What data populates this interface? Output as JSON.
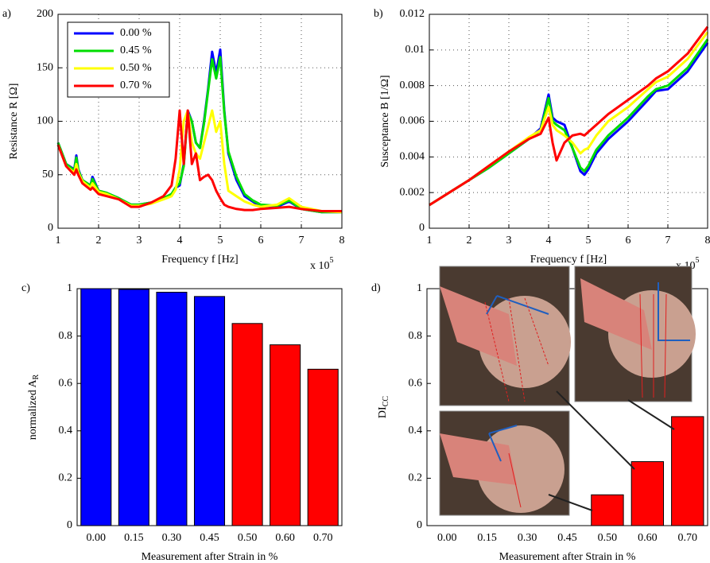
{
  "chart_data": [
    {
      "type": "line",
      "panel_label": "a)",
      "xlabel": "Frequency f [Hz]",
      "ylabel": "Resistance R [Ω]",
      "x_multiplier": "x 10",
      "x_multiplier_exp": "5",
      "grid": true,
      "legend": "upper left",
      "xlim": [
        1,
        8
      ],
      "xticks": [
        1,
        2,
        3,
        4,
        5,
        6,
        7,
        8
      ],
      "ylim": [
        0,
        200
      ],
      "yticks": [
        0,
        50,
        100,
        150,
        200
      ],
      "x": [
        1.0,
        1.2,
        1.4,
        1.45,
        1.5,
        1.6,
        1.8,
        1.85,
        2.0,
        2.2,
        2.5,
        2.8,
        3.0,
        3.3,
        3.6,
        3.8,
        3.9,
        4.0,
        4.1,
        4.2,
        4.3,
        4.4,
        4.5,
        4.6,
        4.7,
        4.8,
        4.9,
        5.0,
        5.1,
        5.2,
        5.4,
        5.6,
        5.8,
        6.0,
        6.4,
        6.7,
        7.0,
        7.5,
        8.0
      ],
      "series": [
        {
          "name": "0.00 %",
          "color": "#0000ff",
          "values": [
            80,
            60,
            55,
            68,
            55,
            45,
            40,
            48,
            35,
            33,
            28,
            22,
            22,
            24,
            28,
            32,
            38,
            40,
            60,
            110,
            100,
            80,
            75,
            100,
            130,
            165,
            145,
            167,
            110,
            70,
            45,
            30,
            25,
            20,
            20,
            25,
            18,
            15,
            15
          ]
        },
        {
          "name": "0.45 %",
          "color": "#00dd00",
          "values": [
            80,
            60,
            54,
            66,
            54,
            45,
            40,
            46,
            35,
            33,
            28,
            22,
            22,
            24,
            28,
            32,
            38,
            42,
            58,
            108,
            100,
            80,
            75,
            98,
            128,
            158,
            140,
            160,
            108,
            72,
            48,
            32,
            26,
            22,
            21,
            26,
            18,
            15,
            15
          ]
        },
        {
          "name": "0.50 %",
          "color": "#ffff00",
          "values": [
            78,
            58,
            52,
            60,
            52,
            44,
            38,
            42,
            34,
            32,
            27,
            21,
            21,
            23,
            27,
            30,
            36,
            55,
            100,
            110,
            80,
            70,
            65,
            80,
            95,
            110,
            90,
            100,
            60,
            35,
            30,
            25,
            22,
            20,
            22,
            28,
            20,
            16,
            15
          ]
        },
        {
          "name": "0.70 %",
          "color": "#ff0000",
          "values": [
            78,
            58,
            50,
            55,
            50,
            42,
            36,
            38,
            32,
            30,
            27,
            20,
            20,
            24,
            30,
            40,
            65,
            110,
            60,
            110,
            60,
            70,
            45,
            48,
            50,
            45,
            35,
            28,
            22,
            20,
            18,
            17,
            17,
            18,
            19,
            20,
            18,
            16,
            16
          ]
        }
      ]
    },
    {
      "type": "line",
      "panel_label": "b)",
      "xlabel": "Frequency f [Hz]",
      "ylabel": "Susceptance B [1/Ω]",
      "x_multiplier": "x 10",
      "x_multiplier_exp": "5",
      "grid": true,
      "xlim": [
        1,
        8
      ],
      "xticks": [
        1,
        2,
        3,
        4,
        5,
        6,
        7,
        8
      ],
      "ylim": [
        0,
        0.012
      ],
      "yticks": [
        0,
        0.002,
        0.004,
        0.006,
        0.008,
        0.01,
        0.012
      ],
      "x": [
        1,
        1.5,
        2,
        2.5,
        3,
        3.5,
        3.8,
        4,
        4.1,
        4.2,
        4.4,
        4.6,
        4.8,
        4.9,
        5,
        5.2,
        5.5,
        6,
        6.5,
        6.7,
        7,
        7.5,
        8
      ],
      "series": [
        {
          "name": "0.00 %",
          "color": "#0000ff",
          "values": [
            0.0013,
            0.002,
            0.0027,
            0.0034,
            0.0042,
            0.005,
            0.0056,
            0.0075,
            0.0062,
            0.006,
            0.0058,
            0.0045,
            0.0032,
            0.003,
            0.0033,
            0.0042,
            0.005,
            0.006,
            0.0072,
            0.0077,
            0.0078,
            0.0088,
            0.0104
          ]
        },
        {
          "name": "0.45 %",
          "color": "#00dd00",
          "values": [
            0.0013,
            0.002,
            0.0027,
            0.0034,
            0.0042,
            0.005,
            0.0055,
            0.0073,
            0.006,
            0.0058,
            0.0055,
            0.0045,
            0.0034,
            0.0032,
            0.0035,
            0.0044,
            0.0052,
            0.0062,
            0.0074,
            0.0078,
            0.008,
            0.009,
            0.0106
          ]
        },
        {
          "name": "0.50 %",
          "color": "#ffff00",
          "values": [
            0.0013,
            0.002,
            0.0027,
            0.0035,
            0.0043,
            0.0051,
            0.0055,
            0.0068,
            0.0058,
            0.0055,
            0.0052,
            0.0048,
            0.0042,
            0.0044,
            0.0045,
            0.0052,
            0.006,
            0.0068,
            0.0078,
            0.0082,
            0.0085,
            0.0095,
            0.011
          ]
        },
        {
          "name": "0.70 %",
          "color": "#ff0000",
          "values": [
            0.0013,
            0.002,
            0.0027,
            0.0035,
            0.0043,
            0.005,
            0.0053,
            0.0062,
            0.0048,
            0.0038,
            0.0048,
            0.0052,
            0.0053,
            0.0052,
            0.0054,
            0.0058,
            0.0064,
            0.0072,
            0.008,
            0.0084,
            0.0088,
            0.0098,
            0.0113
          ]
        }
      ]
    },
    {
      "type": "bar",
      "panel_label": "c)",
      "xlabel": "Measurement after Strain in %",
      "ylabel": "normalized A",
      "ylabel_sub": "R",
      "ylim": [
        0,
        1
      ],
      "yticks": [
        0,
        0.2,
        0.4,
        0.6,
        0.8,
        1
      ],
      "categories": [
        "0.00",
        "0.15",
        "0.30",
        "0.45",
        "0.50",
        "0.60",
        "0.70"
      ],
      "values": [
        1,
        0.997,
        0.985,
        0.967,
        0.853,
        0.763,
        0.66
      ],
      "colors": [
        "#0000ff",
        "#0000ff",
        "#0000ff",
        "#0000ff",
        "#ff0000",
        "#ff0000",
        "#ff0000"
      ]
    },
    {
      "type": "bar",
      "panel_label": "d)",
      "xlabel": "Measurement after Strain in %",
      "ylabel": "DI",
      "ylabel_sub": "CC",
      "ylim": [
        0,
        1
      ],
      "yticks": [
        0,
        0.2,
        0.4,
        0.6,
        0.8,
        1
      ],
      "categories": [
        "0.00",
        "0.15",
        "0.30",
        "0.45",
        "0.50",
        "0.60",
        "0.70"
      ],
      "values": [
        null,
        null,
        null,
        null,
        0.13,
        0.27,
        0.46
      ],
      "color": "#ff0000"
    }
  ]
}
